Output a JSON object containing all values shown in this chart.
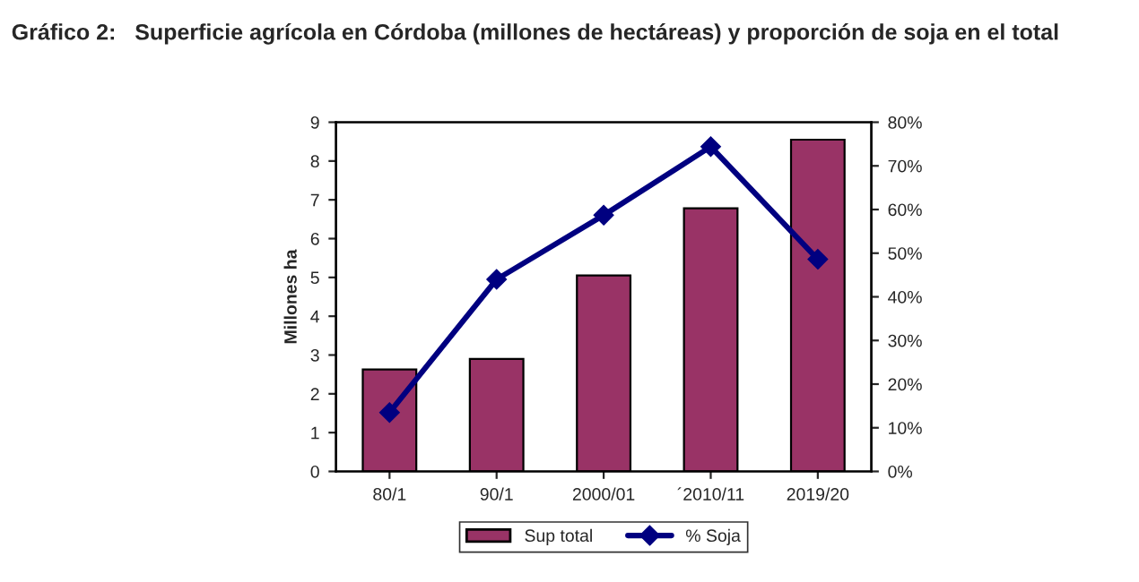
{
  "chart_data": {
    "type": "bar",
    "title": "Gráfico 2:   Superficie agrícola en Córdoba (millones de hectáreas) y proporción de soja en el total",
    "ylabel": "Millones ha",
    "categories": [
      "80/1",
      "90/1",
      "2000/01",
      "´2010/11",
      "2019/20"
    ],
    "series": [
      {
        "name": "Sup total",
        "color": "#993366",
        "values": [
          2.63,
          2.9,
          5.05,
          6.78,
          8.55
        ]
      },
      {
        "name": "% Soja",
        "type": "line",
        "axis": "y2",
        "color": "#000080",
        "marker": "diamond",
        "values": [
          13.5,
          44,
          58.7,
          74.4,
          48.6
        ]
      }
    ],
    "ylim": [
      0,
      9
    ],
    "yticks": [
      0,
      1,
      2,
      3,
      4,
      5,
      6,
      7,
      8,
      9
    ],
    "y2lim": [
      0,
      80
    ],
    "y2ticks": [
      {
        "value": 0,
        "label": "0%"
      },
      {
        "value": 10,
        "label": "10%"
      },
      {
        "value": 20,
        "label": "20%"
      },
      {
        "value": 30,
        "label": "30%"
      },
      {
        "value": 40,
        "label": "40%"
      },
      {
        "value": 50,
        "label": "50%"
      },
      {
        "value": 60,
        "label": "60%"
      },
      {
        "value": 70,
        "label": "70%"
      },
      {
        "value": 80,
        "label": "80%"
      }
    ],
    "legend": "bottom",
    "grid": false
  }
}
